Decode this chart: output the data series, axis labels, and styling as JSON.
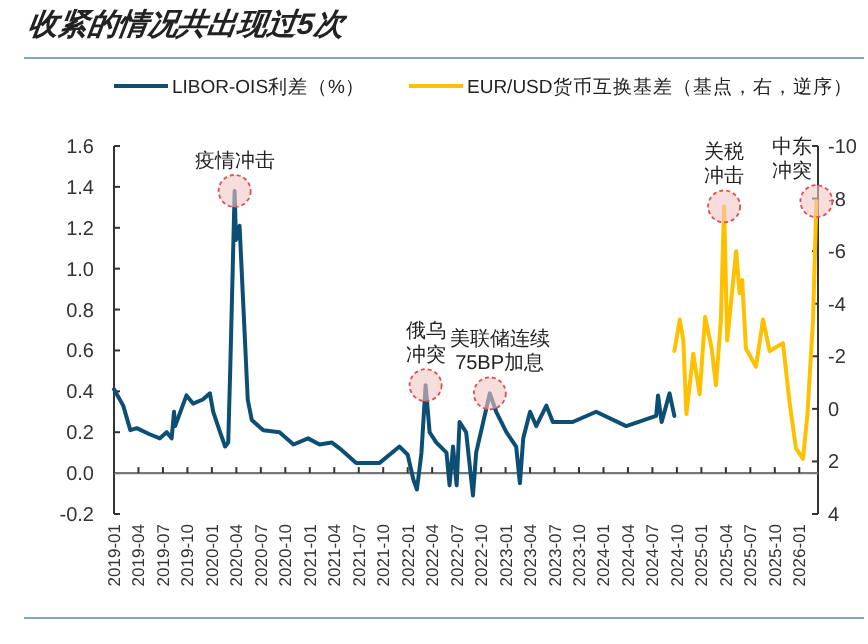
{
  "chart_data": {
    "type": "line",
    "title": "收紧的情况共出现过5次",
    "xlim": [
      "2019-01-01",
      "2026-03-10"
    ],
    "xticks": [
      "2019-01",
      "2019-04",
      "2019-07",
      "2019-10",
      "2020-01",
      "2020-04",
      "2020-07",
      "2020-10",
      "2021-01",
      "2021-04",
      "2021-07",
      "2021-10",
      "2022-01",
      "2022-04",
      "2022-07",
      "2022-10",
      "2023-01",
      "2023-04",
      "2023-07",
      "2023-10",
      "2024-01",
      "2024-04",
      "2024-07",
      "2024-10",
      "2025-01",
      "2025-04",
      "2025-07",
      "2025-10",
      "2026-01"
    ],
    "ylim": [
      -0.2,
      1.6
    ],
    "yticks": [
      -0.2,
      {
        "value": 0,
        "label": "0.0"
      },
      0.2,
      0.4,
      0.6,
      0.8,
      {
        "value": 1,
        "label": "1.0"
      },
      1.2,
      1.4,
      1.6
    ],
    "y2lim": [
      4,
      -10
    ],
    "y2ticks": [
      -10,
      -8,
      -6,
      -4,
      -2,
      0,
      2,
      4
    ],
    "legend": "top",
    "grid": false,
    "ref_lines": [
      {
        "axis": "y",
        "value": 0,
        "color": "#777777"
      }
    ],
    "series": [
      {
        "name": "LIBOR-OIS利差（%）",
        "color": "#0d4f74",
        "x": [
          "2019-01-01",
          "2019-02-05",
          "2019-03-01",
          "2019-03-25",
          "2019-05-12",
          "2019-06-20",
          "2019-07-15",
          "2019-08-03",
          "2019-08-12",
          "2019-08-16",
          "2019-09-28",
          "2019-10-22",
          "2019-11-28",
          "2019-12-24",
          "2020-01-06",
          "2020-02-01",
          "2020-02-20",
          "2020-03-01",
          "2020-03-09",
          "2020-03-25",
          "2020-03-30",
          "2020-04-13",
          "2020-04-27",
          "2020-05-13",
          "2020-05-28",
          "2020-07-10",
          "2020-09-10",
          "2020-11-01",
          "2020-12-25",
          "2021-02-07",
          "2021-03-22",
          "2021-04-22",
          "2021-06-22",
          "2021-09-18",
          "2021-12-01",
          "2022-01-01",
          "2022-01-22",
          "2022-02-05",
          "2022-02-22",
          "2022-03-07",
          "2022-03-22",
          "2022-04-16",
          "2022-05-24",
          "2022-06-05",
          "2022-06-18",
          "2022-07-01",
          "2022-07-12",
          "2022-08-06",
          "2022-09-01",
          "2022-09-13",
          "2022-11-03",
          "2022-11-27",
          "2023-01-04",
          "2023-02-10",
          "2023-02-24",
          "2023-03-06",
          "2023-04-01",
          "2023-04-24",
          "2023-06-01",
          "2023-06-25",
          "2023-09-08",
          "2023-12-04",
          "2024-03-25",
          "2024-07-15",
          "2024-07-22",
          "2024-08-05",
          "2024-09-04",
          "2024-09-22"
        ],
        "values": [
          0.41,
          0.33,
          0.21,
          0.22,
          0.19,
          0.17,
          0.2,
          0.17,
          0.3,
          0.23,
          0.38,
          0.34,
          0.36,
          0.39,
          0.3,
          0.2,
          0.13,
          0.15,
          0.53,
          1.38,
          1.14,
          1.21,
          0.82,
          0.36,
          0.26,
          0.21,
          0.2,
          0.14,
          0.17,
          0.14,
          0.15,
          0.12,
          0.05,
          0.05,
          0.13,
          0.09,
          -0.03,
          -0.08,
          0.1,
          0.43,
          0.2,
          0.15,
          0.1,
          -0.06,
          0.13,
          -0.06,
          0.25,
          0.2,
          -0.11,
          0.1,
          0.39,
          0.3,
          0.2,
          0.13,
          -0.05,
          0.17,
          0.3,
          0.23,
          0.33,
          0.25,
          0.25,
          0.3,
          0.23,
          0.28,
          0.38,
          0.25,
          0.39,
          0.28
        ]
      },
      {
        "name": "EUR/USD货币互换基差（基点，右，逆序）",
        "color": "#ffc000",
        "axis": "y2",
        "x": [
          "2024-09-22",
          "2024-10-12",
          "2024-10-25",
          "2024-11-06",
          "2024-12-01",
          "2024-12-25",
          "2025-01-15",
          "2025-02-09",
          "2025-02-25",
          "2025-03-13",
          "2025-03-25",
          "2025-04-06",
          "2025-05-09",
          "2025-05-22",
          "2025-06-01",
          "2025-06-15",
          "2025-07-22",
          "2025-08-18",
          "2025-09-12",
          "2025-11-01",
          "2025-11-25",
          "2025-12-19",
          "2026-01-15",
          "2026-02-01",
          "2026-02-22",
          "2026-03-04"
        ],
        "values": [
          -2.2,
          -3.4,
          -2.6,
          0.2,
          -2.1,
          -0.56,
          -3.5,
          -2.3,
          -0.9,
          -3.4,
          -7.7,
          -2.6,
          -6.0,
          -4.4,
          -4.9,
          -2.3,
          -1.6,
          -3.4,
          -2.2,
          -2.5,
          -0.3,
          1.5,
          1.9,
          0.2,
          -3.4,
          -7.9
        ]
      }
    ],
    "annotations": [
      {
        "text": "疫情冲击",
        "x": "2020-03-25",
        "y": 1.38
      },
      {
        "text": "俄乌冲突",
        "x": "2022-03-07",
        "y": 0.43
      },
      {
        "text": "美联储连续75BP加息",
        "x": "2022-11-03",
        "y": 0.39
      },
      "关税冲击",
      "中东冲突"
    ]
  }
}
